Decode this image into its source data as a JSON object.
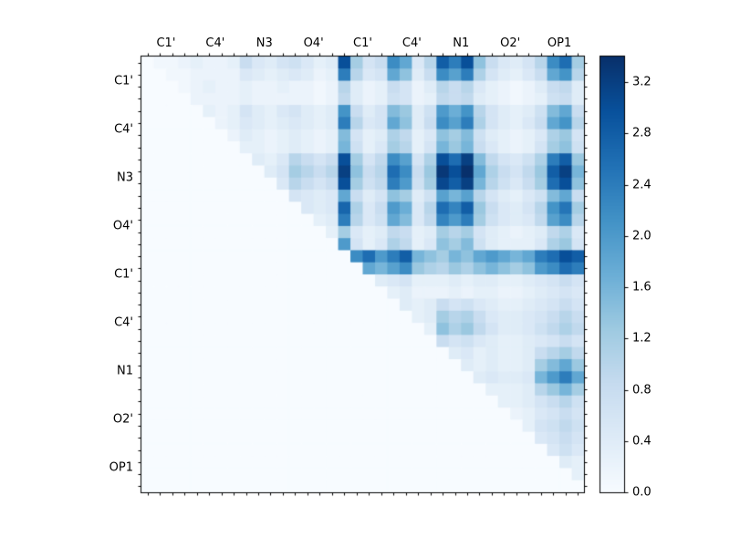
{
  "chart_data": {
    "type": "heatmap",
    "title": "",
    "n": 36,
    "labels_every": 4,
    "x_tick_labels": [
      "C1'",
      "C4'",
      "N3",
      "O4'",
      "C1'",
      "C4'",
      "N1",
      "O2'",
      "OP1"
    ],
    "y_tick_labels": [
      "C1'",
      "C4'",
      "N3",
      "O4'",
      "C1'",
      "C4'",
      "N1",
      "O2'",
      "OP1"
    ],
    "vmin": 0.0,
    "vmax": 3.4,
    "colormap": "Blues",
    "colormap_anchors": [
      "#f7fbff",
      "#deebf7",
      "#c6dbef",
      "#9ecae1",
      "#6baed6",
      "#4292c6",
      "#2171b5",
      "#08519c",
      "#08306b"
    ],
    "colorbar_tick_labels": [
      "0.0",
      "0.4",
      "0.8",
      "1.2",
      "1.6",
      "2.0",
      "2.4",
      "2.8",
      "3.2"
    ],
    "colorbar_tick_values": [
      0.0,
      0.4,
      0.8,
      1.2,
      1.6,
      2.0,
      2.4,
      2.8,
      3.2
    ],
    "legend": "none",
    "grid": false,
    "matrix": [
      [
        0,
        0.1,
        0.1,
        0.2,
        0.3,
        0.2,
        0.2,
        0.3,
        0.8,
        0.5,
        0.4,
        0.6,
        0.7,
        0.5,
        0.3,
        0.4,
        3.0,
        1.2,
        0.6,
        0.8,
        2.2,
        1.8,
        0.5,
        1.0,
        2.8,
        2.4,
        3.0,
        1.4,
        0.8,
        0.5,
        0.4,
        0.6,
        1.0,
        2.2,
        2.6,
        1.2
      ],
      [
        0,
        0,
        0.1,
        0.1,
        0.2,
        0.2,
        0.2,
        0.2,
        0.5,
        0.4,
        0.3,
        0.4,
        0.5,
        0.4,
        0.2,
        0.3,
        2.4,
        1.0,
        0.5,
        0.6,
        1.8,
        1.4,
        0.4,
        0.8,
        2.2,
        1.9,
        2.4,
        1.1,
        0.6,
        0.4,
        0.3,
        0.5,
        0.8,
        1.8,
        2.1,
        1.0
      ],
      [
        0,
        0,
        0,
        0.1,
        0.2,
        0.3,
        0.2,
        0.2,
        0.3,
        0.2,
        0.2,
        0.3,
        0.2,
        0.2,
        0.1,
        0.2,
        1.0,
        0.4,
        0.2,
        0.3,
        0.8,
        0.6,
        0.2,
        0.4,
        1.0,
        0.8,
        1.0,
        0.5,
        0.3,
        0.2,
        0.1,
        0.2,
        0.4,
        0.8,
        0.9,
        0.4
      ],
      [
        0,
        0,
        0,
        0,
        0.2,
        0.2,
        0.2,
        0.2,
        0.3,
        0.2,
        0.2,
        0.2,
        0.2,
        0.2,
        0.1,
        0.2,
        0.9,
        0.4,
        0.2,
        0.3,
        0.7,
        0.6,
        0.2,
        0.3,
        0.9,
        0.8,
        0.9,
        0.4,
        0.3,
        0.2,
        0.1,
        0.2,
        0.3,
        0.7,
        0.8,
        0.4
      ],
      [
        0,
        0,
        0,
        0,
        0,
        0.3,
        0.2,
        0.3,
        0.6,
        0.4,
        0.3,
        0.5,
        0.6,
        0.4,
        0.3,
        0.4,
        2.1,
        0.8,
        0.4,
        0.6,
        1.5,
        1.3,
        0.4,
        0.7,
        2.0,
        1.7,
        2.1,
        1.0,
        0.6,
        0.4,
        0.3,
        0.4,
        0.7,
        1.5,
        1.8,
        0.8
      ],
      [
        0,
        0,
        0,
        0,
        0,
        0,
        0.2,
        0.3,
        0.5,
        0.4,
        0.3,
        0.4,
        0.5,
        0.4,
        0.3,
        0.4,
        2.4,
        1.0,
        0.5,
        0.6,
        1.8,
        1.4,
        0.4,
        0.8,
        2.2,
        1.9,
        2.4,
        1.1,
        0.6,
        0.4,
        0.3,
        0.5,
        0.8,
        1.8,
        2.1,
        1.0
      ],
      [
        0,
        0,
        0,
        0,
        0,
        0,
        0,
        0.2,
        0.4,
        0.3,
        0.2,
        0.3,
        0.4,
        0.3,
        0.2,
        0.3,
        1.5,
        0.6,
        0.3,
        0.4,
        1.1,
        0.9,
        0.3,
        0.5,
        1.4,
        1.2,
        1.5,
        0.7,
        0.4,
        0.3,
        0.2,
        0.3,
        0.5,
        1.1,
        1.3,
        0.6
      ],
      [
        0,
        0,
        0,
        0,
        0,
        0,
        0,
        0,
        0.3,
        0.3,
        0.2,
        0.3,
        0.4,
        0.3,
        0.2,
        0.3,
        1.6,
        0.7,
        0.3,
        0.5,
        1.2,
        1.0,
        0.3,
        0.6,
        1.6,
        1.3,
        1.6,
        0.8,
        0.5,
        0.3,
        0.2,
        0.3,
        0.6,
        1.2,
        1.4,
        0.7
      ],
      [
        0,
        0,
        0,
        0,
        0,
        0,
        0,
        0,
        0,
        0.4,
        0.3,
        0.5,
        1.0,
        0.8,
        0.6,
        0.8,
        3.0,
        1.2,
        0.6,
        0.9,
        2.2,
        1.9,
        0.6,
        1.1,
        3.0,
        2.6,
        3.2,
        1.5,
        0.9,
        0.6,
        0.5,
        0.7,
        1.1,
        2.4,
        2.8,
        1.3
      ],
      [
        0,
        0,
        0,
        0,
        0,
        0,
        0,
        0,
        0,
        0,
        0.4,
        0.6,
        1.2,
        1.0,
        0.8,
        1.0,
        3.2,
        1.4,
        0.8,
        1.0,
        2.6,
        2.2,
        0.8,
        1.3,
        3.3,
        3.0,
        3.4,
        1.8,
        1.1,
        0.8,
        0.6,
        0.9,
        1.3,
        2.8,
        3.2,
        1.6
      ],
      [
        0,
        0,
        0,
        0,
        0,
        0,
        0,
        0,
        0,
        0,
        0,
        0.5,
        1.0,
        0.8,
        0.6,
        0.8,
        3.0,
        1.2,
        0.7,
        0.9,
        2.4,
        2.0,
        0.7,
        1.2,
        3.1,
        2.8,
        3.2,
        1.6,
        1.0,
        0.7,
        0.5,
        0.8,
        1.2,
        2.6,
        3.0,
        1.4
      ],
      [
        0,
        0,
        0,
        0,
        0,
        0,
        0,
        0,
        0,
        0,
        0,
        0,
        0.6,
        0.5,
        0.4,
        0.5,
        1.8,
        0.8,
        0.4,
        0.6,
        1.4,
        1.2,
        0.4,
        0.7,
        1.9,
        1.6,
        1.9,
        1.0,
        0.6,
        0.4,
        0.3,
        0.5,
        0.7,
        1.5,
        1.8,
        0.8
      ],
      [
        0,
        0,
        0,
        0,
        0,
        0,
        0,
        0,
        0,
        0,
        0,
        0,
        0,
        0.5,
        0.4,
        0.5,
        2.7,
        1.1,
        0.5,
        0.8,
        2.0,
        1.7,
        0.5,
        1.0,
        2.6,
        2.3,
        2.8,
        1.3,
        0.8,
        0.5,
        0.4,
        0.6,
        1.0,
        2.1,
        2.5,
        1.2
      ],
      [
        0,
        0,
        0,
        0,
        0,
        0,
        0,
        0,
        0,
        0,
        0,
        0,
        0,
        0,
        0.3,
        0.4,
        2.4,
        1.0,
        0.5,
        0.7,
        1.8,
        1.5,
        0.5,
        0.9,
        2.3,
        2.0,
        2.4,
        1.2,
        0.7,
        0.5,
        0.4,
        0.5,
        0.9,
        1.9,
        2.2,
        1.0
      ],
      [
        0,
        0,
        0,
        0,
        0,
        0,
        0,
        0,
        0,
        0,
        0,
        0,
        0,
        0,
        0,
        0.3,
        1.2,
        0.5,
        0.3,
        0.4,
        0.9,
        0.8,
        0.3,
        0.4,
        1.2,
        1.0,
        1.2,
        0.6,
        0.4,
        0.3,
        0.2,
        0.3,
        0.4,
        0.9,
        1.1,
        0.5
      ],
      [
        0,
        0,
        0,
        0,
        0,
        0,
        0,
        0,
        0,
        0,
        0,
        0,
        0,
        0,
        0,
        0,
        2.0,
        0.6,
        0.3,
        0.5,
        1.1,
        0.9,
        0.3,
        0.5,
        1.4,
        1.2,
        1.5,
        0.7,
        0.4,
        0.3,
        0.3,
        0.3,
        0.5,
        1.1,
        1.3,
        0.6
      ],
      [
        0,
        0,
        0,
        0,
        0,
        0,
        0,
        0,
        0,
        0,
        0,
        0,
        0,
        0,
        0,
        0,
        0,
        2.2,
        2.6,
        2.0,
        2.4,
        2.8,
        1.6,
        1.4,
        1.2,
        1.6,
        1.4,
        1.8,
        2.0,
        1.8,
        1.6,
        1.8,
        2.4,
        2.6,
        3.0,
        2.8
      ],
      [
        0,
        0,
        0,
        0,
        0,
        0,
        0,
        0,
        0,
        0,
        0,
        0,
        0,
        0,
        0,
        0,
        0,
        0,
        1.8,
        1.6,
        1.9,
        2.2,
        1.3,
        1.1,
        1.0,
        1.3,
        1.1,
        1.4,
        1.6,
        1.4,
        1.2,
        1.4,
        2.0,
        2.2,
        2.6,
        2.4
      ],
      [
        0,
        0,
        0,
        0,
        0,
        0,
        0,
        0,
        0,
        0,
        0,
        0,
        0,
        0,
        0,
        0,
        0,
        0,
        0,
        0.4,
        0.5,
        0.6,
        0.3,
        0.3,
        0.3,
        0.4,
        0.3,
        0.4,
        0.4,
        0.3,
        0.3,
        0.4,
        0.5,
        0.6,
        0.8,
        0.6
      ],
      [
        0,
        0,
        0,
        0,
        0,
        0,
        0,
        0,
        0,
        0,
        0,
        0,
        0,
        0,
        0,
        0,
        0,
        0,
        0,
        0,
        0.3,
        0.4,
        0.2,
        0.2,
        0.2,
        0.3,
        0.2,
        0.3,
        0.3,
        0.2,
        0.2,
        0.3,
        0.4,
        0.5,
        0.6,
        0.5
      ],
      [
        0,
        0,
        0,
        0,
        0,
        0,
        0,
        0,
        0,
        0,
        0,
        0,
        0,
        0,
        0,
        0,
        0,
        0,
        0,
        0,
        0,
        0.4,
        0.3,
        0.4,
        0.8,
        0.6,
        0.7,
        0.5,
        0.4,
        0.3,
        0.3,
        0.4,
        0.5,
        0.6,
        0.8,
        0.6
      ],
      [
        0,
        0,
        0,
        0,
        0,
        0,
        0,
        0,
        0,
        0,
        0,
        0,
        0,
        0,
        0,
        0,
        0,
        0,
        0,
        0,
        0,
        0,
        0.3,
        0.4,
        1.2,
        1.0,
        1.1,
        0.8,
        0.5,
        0.4,
        0.4,
        0.5,
        0.6,
        0.8,
        1.0,
        0.8
      ],
      [
        0,
        0,
        0,
        0,
        0,
        0,
        0,
        0,
        0,
        0,
        0,
        0,
        0,
        0,
        0,
        0,
        0,
        0,
        0,
        0,
        0,
        0,
        0,
        0.3,
        1.4,
        1.1,
        1.3,
        0.9,
        0.6,
        0.4,
        0.4,
        0.5,
        0.7,
        0.9,
        1.1,
        0.9
      ],
      [
        0,
        0,
        0,
        0,
        0,
        0,
        0,
        0,
        0,
        0,
        0,
        0,
        0,
        0,
        0,
        0,
        0,
        0,
        0,
        0,
        0,
        0,
        0,
        0,
        0.8,
        0.6,
        0.7,
        0.5,
        0.4,
        0.3,
        0.3,
        0.4,
        0.5,
        0.6,
        0.8,
        0.6
      ],
      [
        0,
        0,
        0,
        0,
        0,
        0,
        0,
        0,
        0,
        0,
        0,
        0,
        0,
        0,
        0,
        0,
        0,
        0,
        0,
        0,
        0,
        0,
        0,
        0,
        0,
        0.4,
        0.5,
        0.3,
        0.4,
        0.3,
        0.3,
        0.4,
        0.8,
        1.0,
        1.2,
        0.9
      ],
      [
        0,
        0,
        0,
        0,
        0,
        0,
        0,
        0,
        0,
        0,
        0,
        0,
        0,
        0,
        0,
        0,
        0,
        0,
        0,
        0,
        0,
        0,
        0,
        0,
        0,
        0,
        0.4,
        0.3,
        0.4,
        0.3,
        0.3,
        0.4,
        1.2,
        1.5,
        1.8,
        1.3
      ],
      [
        0,
        0,
        0,
        0,
        0,
        0,
        0,
        0,
        0,
        0,
        0,
        0,
        0,
        0,
        0,
        0,
        0,
        0,
        0,
        0,
        0,
        0,
        0,
        0,
        0,
        0,
        0,
        0.4,
        0.5,
        0.4,
        0.4,
        0.5,
        1.6,
        2.0,
        2.4,
        1.8
      ],
      [
        0,
        0,
        0,
        0,
        0,
        0,
        0,
        0,
        0,
        0,
        0,
        0,
        0,
        0,
        0,
        0,
        0,
        0,
        0,
        0,
        0,
        0,
        0,
        0,
        0,
        0,
        0,
        0,
        0.3,
        0.3,
        0.3,
        0.4,
        1.0,
        1.3,
        1.6,
        1.2
      ],
      [
        0,
        0,
        0,
        0,
        0,
        0,
        0,
        0,
        0,
        0,
        0,
        0,
        0,
        0,
        0,
        0,
        0,
        0,
        0,
        0,
        0,
        0,
        0,
        0,
        0,
        0,
        0,
        0,
        0,
        0.3,
        0.3,
        0.4,
        0.6,
        0.8,
        1.0,
        0.7
      ],
      [
        0,
        0,
        0,
        0,
        0,
        0,
        0,
        0,
        0,
        0,
        0,
        0,
        0,
        0,
        0,
        0,
        0,
        0,
        0,
        0,
        0,
        0,
        0,
        0,
        0,
        0,
        0,
        0,
        0,
        0,
        0.2,
        0.3,
        0.5,
        0.6,
        0.8,
        0.6
      ],
      [
        0,
        0,
        0,
        0,
        0,
        0,
        0,
        0,
        0,
        0,
        0,
        0,
        0,
        0,
        0,
        0,
        0,
        0,
        0,
        0,
        0,
        0,
        0,
        0,
        0,
        0,
        0,
        0,
        0,
        0,
        0,
        0.3,
        0.6,
        0.7,
        0.9,
        0.7
      ],
      [
        0,
        0,
        0,
        0,
        0,
        0,
        0,
        0,
        0,
        0,
        0,
        0,
        0,
        0,
        0,
        0,
        0,
        0,
        0,
        0,
        0,
        0,
        0,
        0,
        0,
        0,
        0,
        0,
        0,
        0,
        0,
        0,
        0.5,
        0.6,
        0.8,
        0.6
      ],
      [
        0,
        0,
        0,
        0,
        0,
        0,
        0,
        0,
        0,
        0,
        0,
        0,
        0,
        0,
        0,
        0,
        0,
        0,
        0,
        0,
        0,
        0,
        0,
        0,
        0,
        0,
        0,
        0,
        0,
        0,
        0,
        0,
        0,
        0.5,
        0.7,
        0.5
      ],
      [
        0,
        0,
        0,
        0,
        0,
        0,
        0,
        0,
        0,
        0,
        0,
        0,
        0,
        0,
        0,
        0,
        0,
        0,
        0,
        0,
        0,
        0,
        0,
        0,
        0,
        0,
        0,
        0,
        0,
        0,
        0,
        0,
        0,
        0,
        0.4,
        0.3
      ],
      [
        0,
        0,
        0,
        0,
        0,
        0,
        0,
        0,
        0,
        0,
        0,
        0,
        0,
        0,
        0,
        0,
        0,
        0,
        0,
        0,
        0,
        0,
        0,
        0,
        0,
        0,
        0,
        0,
        0,
        0,
        0,
        0,
        0,
        0,
        0,
        0.3
      ],
      [
        0,
        0,
        0,
        0,
        0,
        0,
        0,
        0,
        0,
        0,
        0,
        0,
        0,
        0,
        0,
        0,
        0,
        0,
        0,
        0,
        0,
        0,
        0,
        0,
        0,
        0,
        0,
        0,
        0,
        0,
        0,
        0,
        0,
        0,
        0,
        0
      ]
    ]
  }
}
